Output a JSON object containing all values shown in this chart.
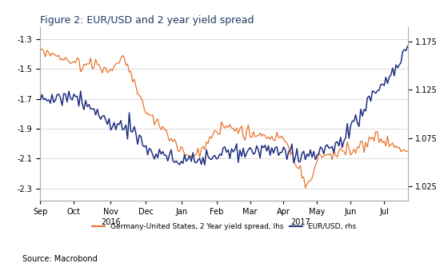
{
  "title": "Figure 2: EUR/USD and 2 year yield spread",
  "source": "Source: Macrobond",
  "title_color": "#1F3864",
  "top_bar_color": "#C00000",
  "legend_label_spread": "Germany-United States, 2 Year yield spread, lhs",
  "legend_label_eurusd": "EUR/USD, rhs",
  "spread_color": "#E8732A",
  "eurusd_color": "#1F3080",
  "ylim_left": [
    -2.38,
    -1.22
  ],
  "ylim_right": [
    1.01,
    1.19
  ],
  "yticks_left": [
    -2.3,
    -2.1,
    -1.9,
    -1.7,
    -1.5,
    -1.3
  ],
  "yticks_right": [
    1.025,
    1.075,
    1.125,
    1.175
  ],
  "background_color": "#FFFFFF",
  "grid_color": "#CCCCCC",
  "x_tick_labels": [
    "Sep",
    "Oct",
    "Nov",
    "Dec",
    "Jan",
    "Feb",
    "Mar",
    "Apr",
    "May",
    "Jun",
    "Jul"
  ],
  "x_tick_year_labels": [
    "2016",
    "2017"
  ],
  "num_points": 220
}
